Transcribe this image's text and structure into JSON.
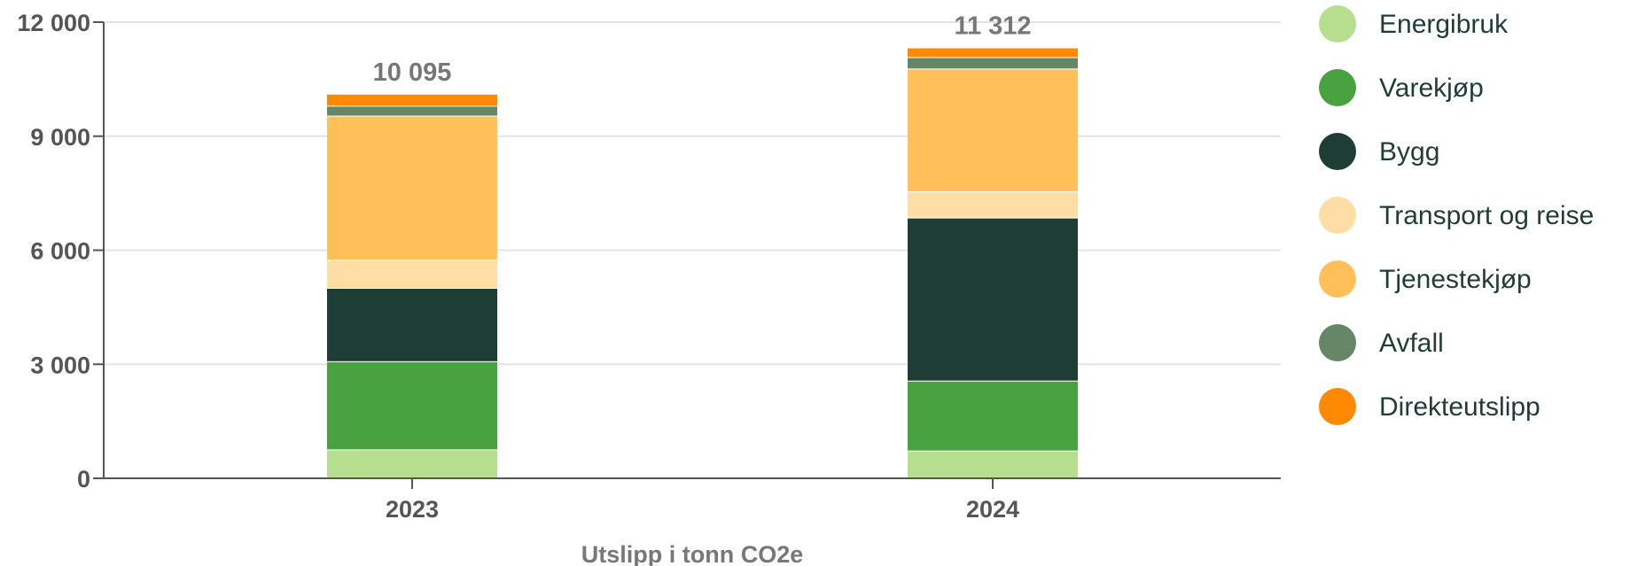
{
  "chart_data": {
    "type": "bar",
    "stacked": true,
    "categories": [
      "2023",
      "2024"
    ],
    "totals": [
      "10 095",
      "11 312"
    ],
    "xlabel": "Utslipp i tonn CO2e",
    "ylabel": "",
    "ylim": [
      0,
      12000
    ],
    "yticks": [
      0,
      3000,
      6000,
      9000,
      12000
    ],
    "ytick_labels": [
      "0",
      "3 000",
      "6 000",
      "9 000",
      "12 000"
    ],
    "grid": true,
    "legend_position": "right",
    "series": [
      {
        "name": "Energibruk",
        "color": "#b5df8f",
        "values": [
          760,
          730
        ]
      },
      {
        "name": "Varekjøp",
        "color": "#47a23f",
        "values": [
          2320,
          1840
        ]
      },
      {
        "name": "Bygg",
        "color": "#1e3d34",
        "values": [
          1930,
          4290
        ]
      },
      {
        "name": "Transport og reise",
        "color": "#ffdea6",
        "values": [
          740,
          690
        ]
      },
      {
        "name": "Tjenestekjøp",
        "color": "#ffc05a",
        "values": [
          3790,
          3230
        ]
      },
      {
        "name": "Avfall",
        "color": "#658766",
        "values": [
          260,
          300
        ]
      },
      {
        "name": "Direkteutslipp",
        "color": "#ff8a00",
        "values": [
          295,
          232
        ]
      }
    ]
  }
}
